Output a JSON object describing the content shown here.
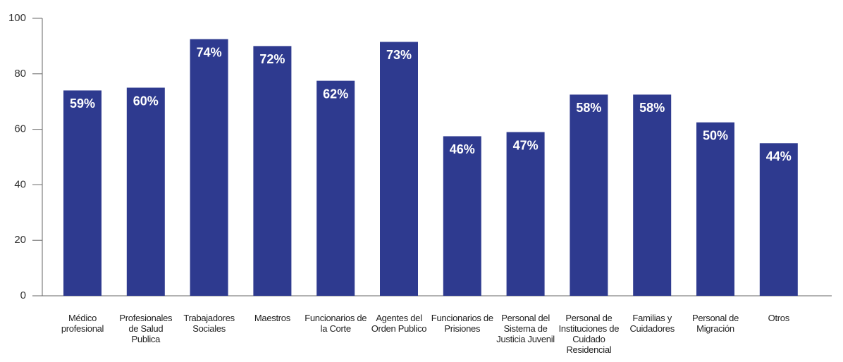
{
  "chart_data": {
    "type": "bar",
    "categories": [
      "Médico profesional",
      "Profesionales de Salud Publica",
      "Trabajadores Sociales",
      "Maestros",
      "Funcionarios de la Corte",
      "Agentes del Orden Publico",
      "Funcionarios de Prisiones",
      "Personal del Sistema de Justicia Juvenil",
      "Personal de Instituciones de Cuidado Residencial",
      "Familias y Cuidadores",
      "Personal de Migración",
      "Otros"
    ],
    "values": [
      74,
      75,
      92.5,
      90,
      77.5,
      91.5,
      57.5,
      59,
      72.5,
      72.5,
      62.5,
      55
    ],
    "annotations": [
      "59%",
      "60%",
      "74%",
      "72%",
      "62%",
      "73%",
      "46%",
      "47%",
      "58%",
      "58%",
      "50%",
      "44%"
    ],
    "color": "#2e3a8f",
    "ylim": [
      0,
      100
    ],
    "yticks": [
      0,
      20,
      40,
      60,
      80,
      100
    ],
    "grid": false
  }
}
